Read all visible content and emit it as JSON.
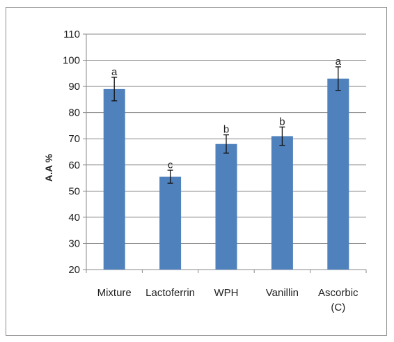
{
  "chart_data": {
    "type": "bar",
    "title": "",
    "xlabel": "",
    "ylabel": "A.A %",
    "ylim": [
      20,
      110
    ],
    "yticks": [
      20,
      30,
      40,
      50,
      60,
      70,
      80,
      90,
      100,
      110
    ],
    "grid": true,
    "legend": "none",
    "bar_color": "#4f81bd",
    "categories": [
      "Mixture",
      "Lactoferrin",
      "WPH",
      "Vanillin",
      "Ascorbic (C)"
    ],
    "category_lines": [
      [
        "Mixture"
      ],
      [
        "Lactoferrin"
      ],
      [
        "WPH"
      ],
      [
        "Vanillin"
      ],
      [
        "Ascorbic",
        "(C)"
      ]
    ],
    "values": [
      89,
      55.5,
      68,
      71,
      93
    ],
    "errors": [
      4.5,
      2.5,
      3.5,
      3.5,
      4.5
    ],
    "significance_labels": [
      "a",
      "c",
      "b",
      "b",
      "a"
    ]
  }
}
